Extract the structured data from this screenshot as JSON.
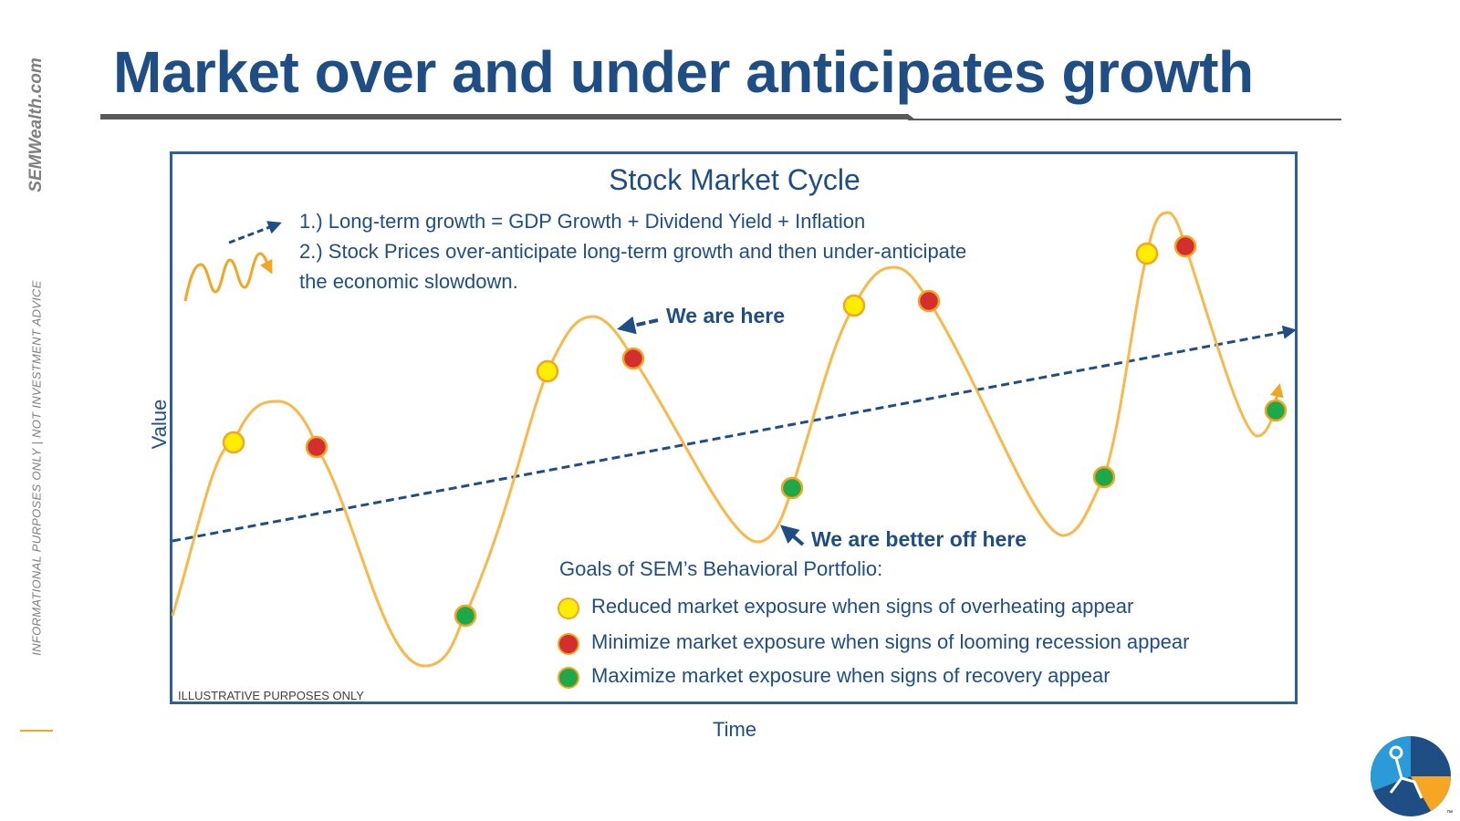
{
  "slide": {
    "title": "Market over and under anticipates growth",
    "side_brand": "SEMWealth.com",
    "side_disclaimer": "INFORMATIONAL PURPOSES ONLY | NOT INVESTMENT ADVICE",
    "trademark": "™"
  },
  "diagram": {
    "title": "Stock Market Cycle",
    "notes": [
      "1.) Long-term growth = GDP Growth + Dividend Yield + Inflation",
      "2.) Stock Prices over-anticipate long-term growth and then under-anticipate",
      "the economic slowdown."
    ],
    "here_label": "We are here",
    "better_label": "We are better off here",
    "goals_title": "Goals of SEM’s Behavioral Portfolio:",
    "legend": [
      {
        "color": "#ffee00",
        "text": "Reduced market exposure when signs of overheating appear"
      },
      {
        "color": "#d32f2f",
        "text": "Minimize market exposure when signs of looming recession appear"
      },
      {
        "color": "#1ea84a",
        "text": "Maximize market exposure when signs of recovery appear"
      }
    ],
    "footnote": "ILLUSTRATIVE PURPOSES ONLY",
    "y_axis_label": "Value",
    "x_axis_label": "Time",
    "colors": {
      "curve": "#f9b84a",
      "trend": "#1f4e85",
      "yellow": "#ffee00",
      "red": "#d32f2f",
      "green": "#1ea84a",
      "frame": "#2e5f97"
    },
    "icons": [
      "trend-arrow-icon",
      "wave-arrow-icon",
      "logo-icon"
    ]
  }
}
